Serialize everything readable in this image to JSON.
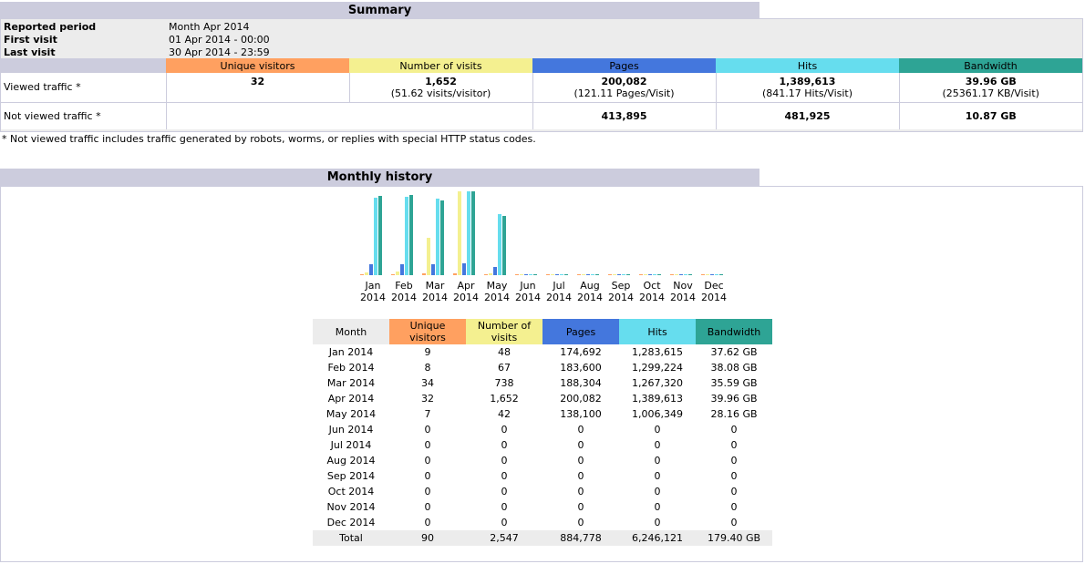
{
  "colors": {
    "unique": "#ffa060",
    "visits": "#f4f090",
    "pages": "#4477dd",
    "hits": "#66ddee",
    "bandwidth": "#2ea495",
    "section": "#ccccdd",
    "grey": "#ececec"
  },
  "summary": {
    "title": "Summary",
    "reported_period_label": "Reported period",
    "reported_period_value": "Month Apr 2014",
    "first_visit_label": "First visit",
    "first_visit_value": "01 Apr 2014 - 00:00",
    "last_visit_label": "Last visit",
    "last_visit_value": "30 Apr 2014 - 23:59",
    "columns": [
      "Unique visitors",
      "Number of visits",
      "Pages",
      "Hits",
      "Bandwidth"
    ],
    "viewed": {
      "label": "Viewed traffic *",
      "unique": "32",
      "visits": "1,652",
      "visits_sub": "(51.62 visits/visitor)",
      "pages": "200,082",
      "pages_sub": "(121.11 Pages/Visit)",
      "hits": "1,389,613",
      "hits_sub": "(841.17 Hits/Visit)",
      "bandwidth": "39.96 GB",
      "bandwidth_sub": "(25361.17 KB/Visit)"
    },
    "not_viewed": {
      "label": "Not viewed traffic *",
      "pages": "413,895",
      "hits": "481,925",
      "bandwidth": "10.87 GB"
    },
    "note": "* Not viewed traffic includes traffic generated by robots, worms, or replies with special HTTP status codes."
  },
  "monthly": {
    "title": "Monthly history",
    "header": {
      "month": "Month",
      "unique": "Unique visitors",
      "visits": "Number of visits",
      "pages": "Pages",
      "hits": "Hits",
      "bandwidth": "Bandwidth"
    },
    "rows": [
      {
        "month": "Jan 2014",
        "unique": "9",
        "visits": "48",
        "pages": "174,692",
        "hits": "1,283,615",
        "bandwidth": "37.62 GB"
      },
      {
        "month": "Feb 2014",
        "unique": "8",
        "visits": "67",
        "pages": "183,600",
        "hits": "1,299,224",
        "bandwidth": "38.08 GB"
      },
      {
        "month": "Mar 2014",
        "unique": "34",
        "visits": "738",
        "pages": "188,304",
        "hits": "1,267,320",
        "bandwidth": "35.59 GB"
      },
      {
        "month": "Apr 2014",
        "unique": "32",
        "visits": "1,652",
        "pages": "200,082",
        "hits": "1,389,613",
        "bandwidth": "39.96 GB"
      },
      {
        "month": "May 2014",
        "unique": "7",
        "visits": "42",
        "pages": "138,100",
        "hits": "1,006,349",
        "bandwidth": "28.16 GB"
      },
      {
        "month": "Jun 2014",
        "unique": "0",
        "visits": "0",
        "pages": "0",
        "hits": "0",
        "bandwidth": "0"
      },
      {
        "month": "Jul 2014",
        "unique": "0",
        "visits": "0",
        "pages": "0",
        "hits": "0",
        "bandwidth": "0"
      },
      {
        "month": "Aug 2014",
        "unique": "0",
        "visits": "0",
        "pages": "0",
        "hits": "0",
        "bandwidth": "0"
      },
      {
        "month": "Sep 2014",
        "unique": "0",
        "visits": "0",
        "pages": "0",
        "hits": "0",
        "bandwidth": "0"
      },
      {
        "month": "Oct 2014",
        "unique": "0",
        "visits": "0",
        "pages": "0",
        "hits": "0",
        "bandwidth": "0"
      },
      {
        "month": "Nov 2014",
        "unique": "0",
        "visits": "0",
        "pages": "0",
        "hits": "0",
        "bandwidth": "0"
      },
      {
        "month": "Dec 2014",
        "unique": "0",
        "visits": "0",
        "pages": "0",
        "hits": "0",
        "bandwidth": "0"
      }
    ],
    "total": {
      "label": "Total",
      "unique": "90",
      "visits": "2,547",
      "pages": "884,778",
      "hits": "6,246,121",
      "bandwidth": "179.40 GB"
    }
  },
  "chart_data": {
    "type": "bar",
    "categories": [
      "Jan",
      "Feb",
      "Mar",
      "Apr",
      "May",
      "Jun",
      "Jul",
      "Aug",
      "Sep",
      "Oct",
      "Nov",
      "Dec"
    ],
    "category_years": [
      "2014",
      "2014",
      "2014",
      "2014",
      "2014",
      "2014",
      "2014",
      "2014",
      "2014",
      "2014",
      "2014",
      "2014"
    ],
    "series": [
      {
        "key": "unique",
        "values": [
          9,
          8,
          34,
          32,
          7,
          0,
          0,
          0,
          0,
          0,
          0,
          0
        ]
      },
      {
        "key": "visits",
        "values": [
          48,
          67,
          738,
          1652,
          42,
          0,
          0,
          0,
          0,
          0,
          0,
          0
        ]
      },
      {
        "key": "pages",
        "values": [
          174692,
          183600,
          188304,
          200082,
          138100,
          0,
          0,
          0,
          0,
          0,
          0,
          0
        ]
      },
      {
        "key": "hits",
        "values": [
          1283615,
          1299224,
          1267320,
          1389613,
          1006349,
          0,
          0,
          0,
          0,
          0,
          0,
          0
        ]
      },
      {
        "key": "bandwidth",
        "values": [
          37.62,
          38.08,
          35.59,
          39.96,
          28.16,
          0,
          0,
          0,
          0,
          0,
          0,
          0
        ]
      }
    ],
    "scale_groups": [
      [
        "unique",
        "visits"
      ],
      [
        "pages",
        "hits"
      ],
      [
        "bandwidth"
      ]
    ]
  }
}
